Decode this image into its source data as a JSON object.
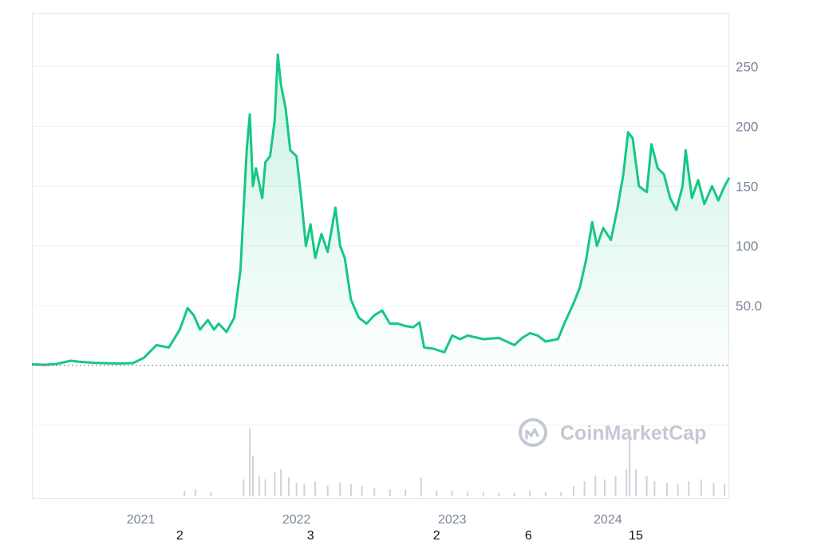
{
  "chart_data": {
    "type": "area",
    "title": "",
    "xlabel": "",
    "ylabel": "",
    "y_ticks": [
      "250",
      "200",
      "150",
      "100",
      "50.0"
    ],
    "y_tick_values": [
      250,
      200,
      150,
      100,
      50
    ],
    "ylim": [
      0,
      295
    ],
    "baseline": 1,
    "x_ticks": [
      "2021",
      "2022",
      "2023",
      "2024"
    ],
    "x_tick_values": [
      2021.0,
      2022.0,
      2023.0,
      2024.0
    ],
    "xlim": [
      2020.3,
      2024.78
    ],
    "extra_axis_numbers": [
      {
        "label": "2",
        "x": 2021.25
      },
      {
        "label": "3",
        "x": 2022.09
      },
      {
        "label": "2",
        "x": 2022.9
      },
      {
        "label": "6",
        "x": 2023.49
      },
      {
        "label": "15",
        "x": 2024.18
      }
    ],
    "grid": true,
    "legend": "none",
    "watermark": "CoinMarketCap",
    "colors": {
      "line": "#16c784",
      "line_below_baseline": "#ea3943",
      "grid": "#eef0f3",
      "tick": "#7a8599",
      "volume": "#cfd3da"
    },
    "series": [
      {
        "values": [
          [
            2020.3,
            1.0
          ],
          [
            2020.38,
            0.6
          ],
          [
            2020.46,
            1.3
          ],
          [
            2020.55,
            4.0
          ],
          [
            2020.6,
            3.2
          ],
          [
            2020.7,
            2.2
          ],
          [
            2020.85,
            1.6
          ],
          [
            2020.95,
            2.0
          ],
          [
            2021.02,
            6.5
          ],
          [
            2021.1,
            17.0
          ],
          [
            2021.18,
            15.0
          ],
          [
            2021.25,
            30.0
          ],
          [
            2021.3,
            48.0
          ],
          [
            2021.34,
            42.0
          ],
          [
            2021.38,
            30.0
          ],
          [
            2021.43,
            38.0
          ],
          [
            2021.47,
            30.0
          ],
          [
            2021.5,
            35.0
          ],
          [
            2021.55,
            28.0
          ],
          [
            2021.6,
            40.0
          ],
          [
            2021.64,
            80.0
          ],
          [
            2021.68,
            180.0
          ],
          [
            2021.7,
            210.0
          ],
          [
            2021.72,
            150.0
          ],
          [
            2021.74,
            165.0
          ],
          [
            2021.78,
            140.0
          ],
          [
            2021.8,
            170.0
          ],
          [
            2021.83,
            175.0
          ],
          [
            2021.86,
            205.0
          ],
          [
            2021.88,
            260.0
          ],
          [
            2021.9,
            235.0
          ],
          [
            2021.93,
            215.0
          ],
          [
            2021.96,
            180.0
          ],
          [
            2022.0,
            175.0
          ],
          [
            2022.03,
            140.0
          ],
          [
            2022.06,
            100.0
          ],
          [
            2022.09,
            118.0
          ],
          [
            2022.12,
            90.0
          ],
          [
            2022.16,
            110.0
          ],
          [
            2022.2,
            95.0
          ],
          [
            2022.25,
            132.0
          ],
          [
            2022.28,
            100.0
          ],
          [
            2022.31,
            90.0
          ],
          [
            2022.35,
            55.0
          ],
          [
            2022.4,
            40.0
          ],
          [
            2022.45,
            35.0
          ],
          [
            2022.5,
            42.0
          ],
          [
            2022.55,
            46.0
          ],
          [
            2022.6,
            35.0
          ],
          [
            2022.65,
            35.0
          ],
          [
            2022.7,
            33.0
          ],
          [
            2022.75,
            32.0
          ],
          [
            2022.79,
            36.0
          ],
          [
            2022.82,
            15.0
          ],
          [
            2022.88,
            14.0
          ],
          [
            2022.95,
            11.0
          ],
          [
            2023.0,
            25.0
          ],
          [
            2023.05,
            22.0
          ],
          [
            2023.1,
            25.0
          ],
          [
            2023.2,
            22.0
          ],
          [
            2023.3,
            23.0
          ],
          [
            2023.4,
            17.0
          ],
          [
            2023.45,
            23.0
          ],
          [
            2023.5,
            27.0
          ],
          [
            2023.55,
            25.0
          ],
          [
            2023.6,
            20.0
          ],
          [
            2023.68,
            22.0
          ],
          [
            2023.72,
            35.0
          ],
          [
            2023.78,
            52.0
          ],
          [
            2023.82,
            65.0
          ],
          [
            2023.86,
            88.0
          ],
          [
            2023.9,
            120.0
          ],
          [
            2023.93,
            100.0
          ],
          [
            2023.97,
            115.0
          ],
          [
            2024.02,
            105.0
          ],
          [
            2024.06,
            130.0
          ],
          [
            2024.1,
            160.0
          ],
          [
            2024.13,
            195.0
          ],
          [
            2024.16,
            190.0
          ],
          [
            2024.2,
            150.0
          ],
          [
            2024.25,
            145.0
          ],
          [
            2024.28,
            185.0
          ],
          [
            2024.32,
            165.0
          ],
          [
            2024.36,
            160.0
          ],
          [
            2024.4,
            140.0
          ],
          [
            2024.44,
            130.0
          ],
          [
            2024.48,
            150.0
          ],
          [
            2024.5,
            180.0
          ],
          [
            2024.54,
            140.0
          ],
          [
            2024.58,
            155.0
          ],
          [
            2024.62,
            135.0
          ],
          [
            2024.67,
            150.0
          ],
          [
            2024.71,
            138.0
          ],
          [
            2024.75,
            150.0
          ],
          [
            2024.78,
            157.0
          ]
        ]
      }
    ],
    "volume": [
      {
        "x": 2021.28,
        "v": 0.08
      },
      {
        "x": 2021.35,
        "v": 0.1
      },
      {
        "x": 2021.45,
        "v": 0.06
      },
      {
        "x": 2021.66,
        "v": 0.25
      },
      {
        "x": 2021.7,
        "v": 1.0
      },
      {
        "x": 2021.72,
        "v": 0.6
      },
      {
        "x": 2021.76,
        "v": 0.3
      },
      {
        "x": 2021.8,
        "v": 0.25
      },
      {
        "x": 2021.86,
        "v": 0.35
      },
      {
        "x": 2021.9,
        "v": 0.4
      },
      {
        "x": 2021.95,
        "v": 0.28
      },
      {
        "x": 2022.0,
        "v": 0.2
      },
      {
        "x": 2022.05,
        "v": 0.18
      },
      {
        "x": 2022.12,
        "v": 0.22
      },
      {
        "x": 2022.2,
        "v": 0.16
      },
      {
        "x": 2022.28,
        "v": 0.2
      },
      {
        "x": 2022.35,
        "v": 0.18
      },
      {
        "x": 2022.42,
        "v": 0.15
      },
      {
        "x": 2022.5,
        "v": 0.12
      },
      {
        "x": 2022.6,
        "v": 0.1
      },
      {
        "x": 2022.7,
        "v": 0.1
      },
      {
        "x": 2022.8,
        "v": 0.28
      },
      {
        "x": 2022.9,
        "v": 0.08
      },
      {
        "x": 2023.0,
        "v": 0.08
      },
      {
        "x": 2023.1,
        "v": 0.07
      },
      {
        "x": 2023.2,
        "v": 0.06
      },
      {
        "x": 2023.3,
        "v": 0.05
      },
      {
        "x": 2023.4,
        "v": 0.05
      },
      {
        "x": 2023.5,
        "v": 0.08
      },
      {
        "x": 2023.6,
        "v": 0.06
      },
      {
        "x": 2023.7,
        "v": 0.06
      },
      {
        "x": 2023.78,
        "v": 0.15
      },
      {
        "x": 2023.85,
        "v": 0.22
      },
      {
        "x": 2023.92,
        "v": 0.3
      },
      {
        "x": 2023.98,
        "v": 0.25
      },
      {
        "x": 2024.05,
        "v": 0.3
      },
      {
        "x": 2024.12,
        "v": 0.4
      },
      {
        "x": 2024.14,
        "v": 0.85
      },
      {
        "x": 2024.18,
        "v": 0.4
      },
      {
        "x": 2024.25,
        "v": 0.3
      },
      {
        "x": 2024.3,
        "v": 0.22
      },
      {
        "x": 2024.38,
        "v": 0.2
      },
      {
        "x": 2024.45,
        "v": 0.18
      },
      {
        "x": 2024.52,
        "v": 0.22
      },
      {
        "x": 2024.6,
        "v": 0.25
      },
      {
        "x": 2024.68,
        "v": 0.2
      },
      {
        "x": 2024.75,
        "v": 0.18
      }
    ]
  }
}
